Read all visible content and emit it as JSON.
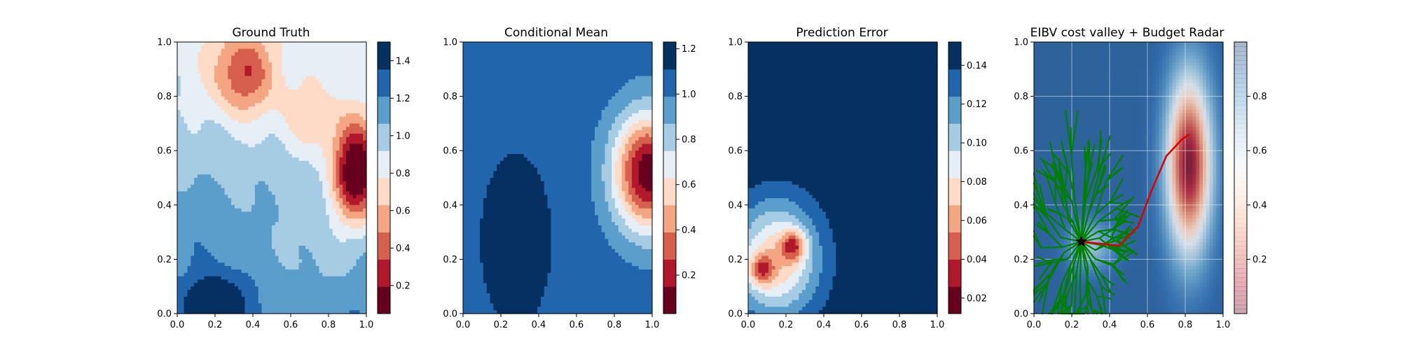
{
  "chart_data": [
    {
      "type": "heatmap",
      "title": "Ground Truth",
      "field": "ground_truth",
      "xlim": [
        0.0,
        1.0
      ],
      "ylim": [
        0.0,
        1.0
      ],
      "xticks": [
        "0.0",
        "0.2",
        "0.4",
        "0.6",
        "0.8",
        "1.0"
      ],
      "yticks": [
        "0.0",
        "0.2",
        "0.4",
        "0.6",
        "0.8",
        "1.0"
      ],
      "colormap": "RdBu",
      "colorbar": {
        "range": [
          0.05,
          1.5
        ],
        "levels": 10,
        "ticks": [
          "0.2",
          "0.4",
          "0.6",
          "0.8",
          "1.0",
          "1.2",
          "1.4"
        ],
        "tick_values": [
          0.2,
          0.4,
          0.6,
          0.8,
          1.0,
          1.2,
          1.4
        ]
      }
    },
    {
      "type": "heatmap",
      "title": "Conditional Mean",
      "field": "conditional_mean",
      "xlim": [
        0.0,
        1.0
      ],
      "ylim": [
        0.0,
        1.0
      ],
      "xticks": [
        "0.0",
        "0.2",
        "0.4",
        "0.6",
        "0.8",
        "1.0"
      ],
      "yticks": [
        "0.0",
        "0.2",
        "0.4",
        "0.6",
        "0.8",
        "1.0"
      ],
      "colormap": "RdBu",
      "colorbar": {
        "range": [
          0.03,
          1.23
        ],
        "levels": 10,
        "ticks": [
          "0.2",
          "0.4",
          "0.6",
          "0.8",
          "1.0",
          "1.2"
        ],
        "tick_values": [
          0.2,
          0.4,
          0.6,
          0.8,
          1.0,
          1.2
        ]
      }
    },
    {
      "type": "heatmap",
      "title": "Prediction Error",
      "field": "prediction_error",
      "xlim": [
        0.0,
        1.0
      ],
      "ylim": [
        0.0,
        1.0
      ],
      "xticks": [
        "0.0",
        "0.2",
        "0.4",
        "0.6",
        "0.8",
        "1.0"
      ],
      "yticks": [
        "0.0",
        "0.2",
        "0.4",
        "0.6",
        "0.8",
        "1.0"
      ],
      "colormap": "RdBu",
      "colorbar": {
        "range": [
          0.012,
          0.152
        ],
        "levels": 10,
        "ticks": [
          "0.02",
          "0.04",
          "0.06",
          "0.08",
          "0.10",
          "0.12",
          "0.14"
        ],
        "tick_values": [
          0.02,
          0.04,
          0.06,
          0.08,
          0.1,
          0.12,
          0.14
        ]
      }
    },
    {
      "type": "heatmap",
      "title": "EIBV cost valley + Budget Radar",
      "field": "cost_valley",
      "xlim": [
        0.0,
        1.0
      ],
      "ylim": [
        0.0,
        1.0
      ],
      "xticks": [
        "0.0",
        "0.2",
        "0.4",
        "0.6",
        "0.8",
        "1.0"
      ],
      "yticks": [
        "0.0",
        "0.2",
        "0.4",
        "0.6",
        "0.8",
        "1.0"
      ],
      "colormap": "RdBu",
      "colorbar": {
        "range": [
          0.0,
          1.0
        ],
        "ticks": [
          "0.2",
          "0.4",
          "0.6",
          "0.8"
        ],
        "tick_values": [
          0.2,
          0.4,
          0.6,
          0.8
        ]
      },
      "start_point": {
        "x": 0.25,
        "y": 0.265,
        "marker": "star"
      },
      "path": [
        [
          0.25,
          0.265
        ],
        [
          0.45,
          0.25
        ],
        [
          0.55,
          0.32
        ],
        [
          0.62,
          0.45
        ],
        [
          0.7,
          0.58
        ],
        [
          0.78,
          0.64
        ],
        [
          0.82,
          0.66
        ]
      ],
      "path_color": "#e00000",
      "tree_color": "#008000"
    }
  ]
}
